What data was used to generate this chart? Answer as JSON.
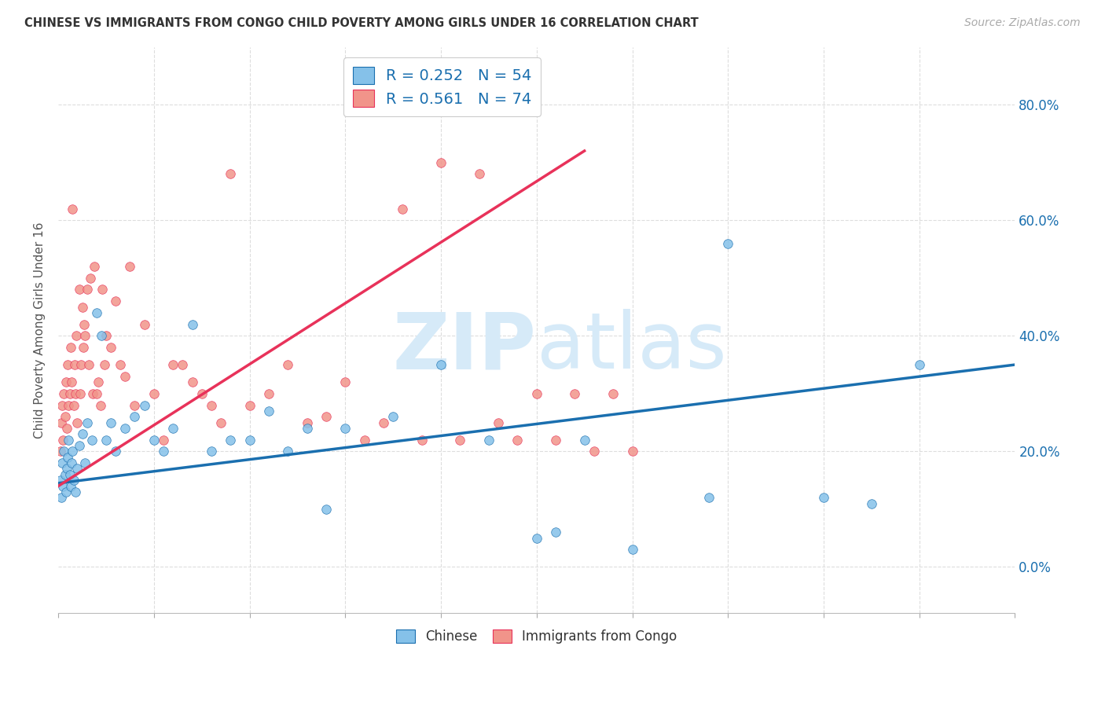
{
  "title": "CHINESE VS IMMIGRANTS FROM CONGO CHILD POVERTY AMONG GIRLS UNDER 16 CORRELATION CHART",
  "source": "Source: ZipAtlas.com",
  "ylabel": "Child Poverty Among Girls Under 16",
  "legend_label1": "Chinese",
  "legend_label2": "Immigrants from Congo",
  "R1": 0.252,
  "N1": 54,
  "R2": 0.561,
  "N2": 74,
  "color_chinese": "#85c1e9",
  "color_congo": "#f1948a",
  "line_color_chinese": "#1a6faf",
  "line_color_congo": "#e8325a",
  "watermark_color": "#d6eaf8",
  "background_color": "#ffffff",
  "grid_color": "#dddddd",
  "xmin": 0.0,
  "xmax": 10.0,
  "ymin": -8.0,
  "ymax": 90.0,
  "yticks": [
    0,
    20,
    40,
    60,
    80
  ],
  "chinese_x": [
    0.02,
    0.03,
    0.04,
    0.05,
    0.06,
    0.07,
    0.08,
    0.09,
    0.1,
    0.11,
    0.12,
    0.13,
    0.14,
    0.15,
    0.16,
    0.18,
    0.2,
    0.22,
    0.25,
    0.28,
    0.3,
    0.35,
    0.4,
    0.45,
    0.5,
    0.55,
    0.6,
    0.7,
    0.8,
    0.9,
    1.0,
    1.1,
    1.2,
    1.4,
    1.6,
    1.8,
    2.0,
    2.2,
    2.4,
    2.6,
    2.8,
    3.0,
    3.5,
    4.0,
    4.5,
    5.0,
    5.5,
    6.0,
    7.0,
    8.0,
    8.5,
    9.0,
    5.2,
    6.8
  ],
  "chinese_y": [
    15,
    12,
    18,
    14,
    20,
    16,
    13,
    17,
    19,
    22,
    16,
    14,
    18,
    20,
    15,
    13,
    17,
    21,
    23,
    18,
    25,
    22,
    44,
    40,
    22,
    25,
    20,
    24,
    26,
    28,
    22,
    20,
    24,
    42,
    20,
    22,
    22,
    27,
    20,
    24,
    10,
    24,
    26,
    35,
    22,
    5,
    22,
    3,
    56,
    12,
    11,
    35,
    6,
    12
  ],
  "congo_x": [
    0.02,
    0.03,
    0.04,
    0.05,
    0.06,
    0.07,
    0.08,
    0.09,
    0.1,
    0.11,
    0.12,
    0.13,
    0.14,
    0.15,
    0.16,
    0.17,
    0.18,
    0.19,
    0.2,
    0.22,
    0.23,
    0.24,
    0.25,
    0.26,
    0.27,
    0.28,
    0.3,
    0.32,
    0.34,
    0.36,
    0.38,
    0.4,
    0.42,
    0.44,
    0.46,
    0.48,
    0.5,
    0.55,
    0.6,
    0.65,
    0.7,
    0.75,
    0.8,
    0.9,
    1.0,
    1.1,
    1.2,
    1.3,
    1.4,
    1.5,
    1.6,
    1.7,
    1.8,
    2.0,
    2.2,
    2.4,
    2.6,
    2.8,
    3.0,
    3.2,
    3.4,
    3.6,
    3.8,
    4.0,
    4.2,
    4.4,
    4.6,
    4.8,
    5.0,
    5.2,
    5.4,
    5.6,
    5.8,
    6.0
  ],
  "congo_y": [
    20,
    25,
    28,
    22,
    30,
    26,
    32,
    24,
    35,
    28,
    30,
    38,
    32,
    62,
    28,
    35,
    30,
    40,
    25,
    48,
    30,
    35,
    45,
    38,
    42,
    40,
    48,
    35,
    50,
    30,
    52,
    30,
    32,
    28,
    48,
    35,
    40,
    38,
    46,
    35,
    33,
    52,
    28,
    42,
    30,
    22,
    35,
    35,
    32,
    30,
    28,
    25,
    68,
    28,
    30,
    35,
    25,
    26,
    32,
    22,
    25,
    62,
    22,
    70,
    22,
    68,
    25,
    22,
    30,
    22,
    30,
    20,
    30,
    20
  ],
  "reg_chinese_x0": 0.0,
  "reg_chinese_y0": 14.5,
  "reg_chinese_x1": 10.0,
  "reg_chinese_y1": 35.0,
  "reg_congo_x0": 0.0,
  "reg_congo_y0": 14.0,
  "reg_congo_x1": 5.5,
  "reg_congo_y1": 72.0
}
